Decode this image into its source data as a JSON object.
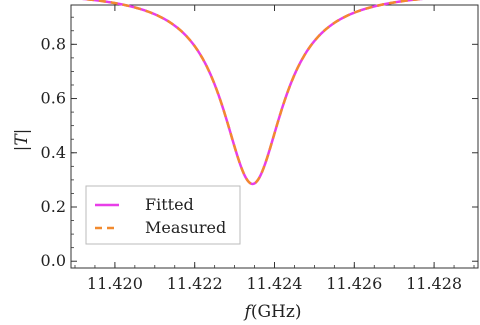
{
  "chart_data": {
    "type": "line",
    "xlabel": {
      "italic": "f",
      "rest": "(GHz)"
    },
    "ylabel": "|T|",
    "xlim": [
      11.4189,
      11.4291
    ],
    "ylim": [
      -0.025,
      0.945
    ],
    "xticks": [
      "11.420",
      "11.422",
      "11.424",
      "11.426",
      "11.428"
    ],
    "yticks": [
      "0.0",
      "0.2",
      "0.4",
      "0.6",
      "0.8"
    ],
    "resonance": {
      "f0": 11.42345,
      "min_value": 0.285,
      "width_ghz": 0.00185
    },
    "x": [
      11.419,
      11.4195,
      11.42,
      11.4205,
      11.421,
      11.4215,
      11.422,
      11.4225,
      11.423,
      11.42345,
      11.4235,
      11.424,
      11.4245,
      11.425,
      11.4255,
      11.426,
      11.4265,
      11.427,
      11.4275,
      11.428,
      11.4285,
      11.429
    ],
    "series": [
      {
        "name": "Fitted",
        "color": "#e83ee8",
        "style": "solid"
      },
      {
        "name": "Measured",
        "color": "#f28a2e",
        "style": "dashed"
      }
    ],
    "legend_position": "bottom-left",
    "grid": false
  }
}
